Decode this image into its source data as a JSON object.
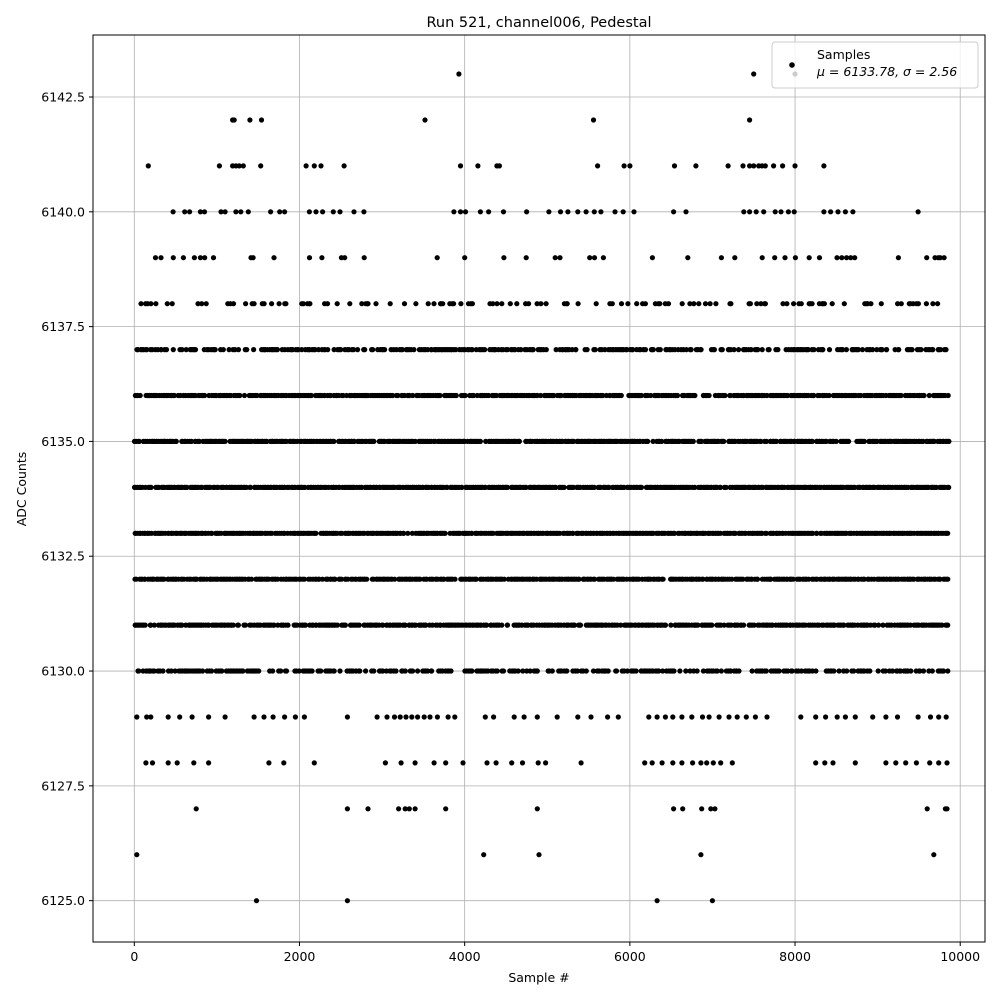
{
  "chart_data": {
    "type": "scatter",
    "title": "Run 521, channel006, Pedestal",
    "xlabel": "Sample #",
    "ylabel": "ADC Counts",
    "xlim": [
      -500,
      10300
    ],
    "ylim": [
      6124.1,
      6143.85
    ],
    "x_ticks": [
      0,
      2000,
      4000,
      6000,
      8000,
      10000
    ],
    "x_tick_labels": [
      "0",
      "2000",
      "4000",
      "6000",
      "8000",
      "10000"
    ],
    "y_ticks": [
      6125.0,
      6127.5,
      6130.0,
      6132.5,
      6135.0,
      6137.5,
      6140.0,
      6142.5
    ],
    "y_tick_labels": [
      "6125.0",
      "6127.5",
      "6130.0",
      "6132.5",
      "6135.0",
      "6137.5",
      "6140.0",
      "6142.5"
    ],
    "grid": true,
    "legend_position": "top-right",
    "point_color": "#000000",
    "series": [
      {
        "name": "Samples"
      }
    ],
    "stats_label": "μ = 6133.78, σ = 2.56",
    "stats": {
      "mean": 6133.78,
      "sigma": 2.56
    },
    "n_samples": 9850,
    "levels": [
      {
        "y": 6125,
        "x": [
          1480,
          2580,
          6330,
          7000
        ]
      },
      {
        "y": 6126,
        "x": [
          30,
          4230,
          4900,
          6860,
          9680
        ]
      },
      {
        "y": 6127,
        "x": [
          750,
          2580,
          2830,
          3200,
          3280,
          3330,
          3400,
          3770,
          4880,
          6530,
          6640,
          6870,
          6980,
          7030,
          9600,
          9820,
          9840
        ]
      },
      {
        "y": 6142,
        "x": [
          1190,
          1210,
          1400,
          1540,
          3520,
          5560,
          7450
        ]
      },
      {
        "y": 6143,
        "x": [
          3930,
          7500,
          8000
        ]
      },
      {
        "y": 6141,
        "x": [
          170,
          1030,
          1190,
          1230,
          1270,
          1320,
          1530,
          2080,
          2180,
          2260,
          2540,
          3950,
          4160,
          4390,
          4420,
          5610,
          5930,
          6000,
          6540,
          6800,
          7190,
          7370,
          7450,
          7500,
          7560,
          7600,
          7640,
          7740,
          7850,
          8000,
          8350
        ]
      },
      {
        "y": 6140,
        "x": [
          470,
          610,
          670,
          800,
          850,
          1050,
          1100,
          1230,
          1290,
          1380,
          1650,
          1760,
          1820,
          2120,
          2200,
          2280,
          2410,
          2490,
          2660,
          2780,
          3870,
          3950,
          4010,
          4190,
          4290,
          4470,
          4750,
          5020,
          5160,
          5250,
          5370,
          5470,
          5570,
          5650,
          5820,
          5920,
          6050,
          6530,
          6680,
          7380,
          7450,
          7530,
          7620,
          7760,
          7830,
          7920,
          7990,
          8350,
          8430,
          8520,
          8610,
          8700,
          9490
        ]
      },
      {
        "y": 6129,
        "x": [
          30,
          150,
          200,
          410,
          550,
          700,
          900,
          1100,
          1450,
          1570,
          1680,
          1820,
          1950,
          2060,
          2580,
          2940,
          3060,
          3150,
          3220,
          3290,
          3360,
          3430,
          3510,
          3580,
          3670,
          3800,
          3880,
          4250,
          4350,
          4600,
          4720,
          4880,
          5120,
          5370,
          5530,
          5730,
          5860,
          6230,
          6330,
          6430,
          6520,
          6630,
          6750,
          6880,
          6960,
          7080,
          7200,
          7300,
          7410,
          7520,
          7660,
          8070,
          8250,
          8370,
          8510,
          8610,
          8730,
          8940,
          9100,
          9240,
          9490,
          9640,
          9740,
          9830
        ]
      },
      {
        "y": 6128,
        "x": [
          140,
          220,
          410,
          520,
          720,
          900,
          1630,
          1810,
          2180,
          3040,
          3230,
          3400,
          3630,
          3770,
          3980,
          4270,
          4380,
          4570,
          4700,
          4890,
          4980,
          5410,
          6180,
          6270,
          6390,
          6520,
          6630,
          6760,
          6860,
          6930,
          7010,
          7100,
          7240,
          8250,
          8360,
          8460,
          8730,
          9100,
          9220,
          9340,
          9470,
          9630,
          9740,
          9840
        ]
      }
    ]
  }
}
